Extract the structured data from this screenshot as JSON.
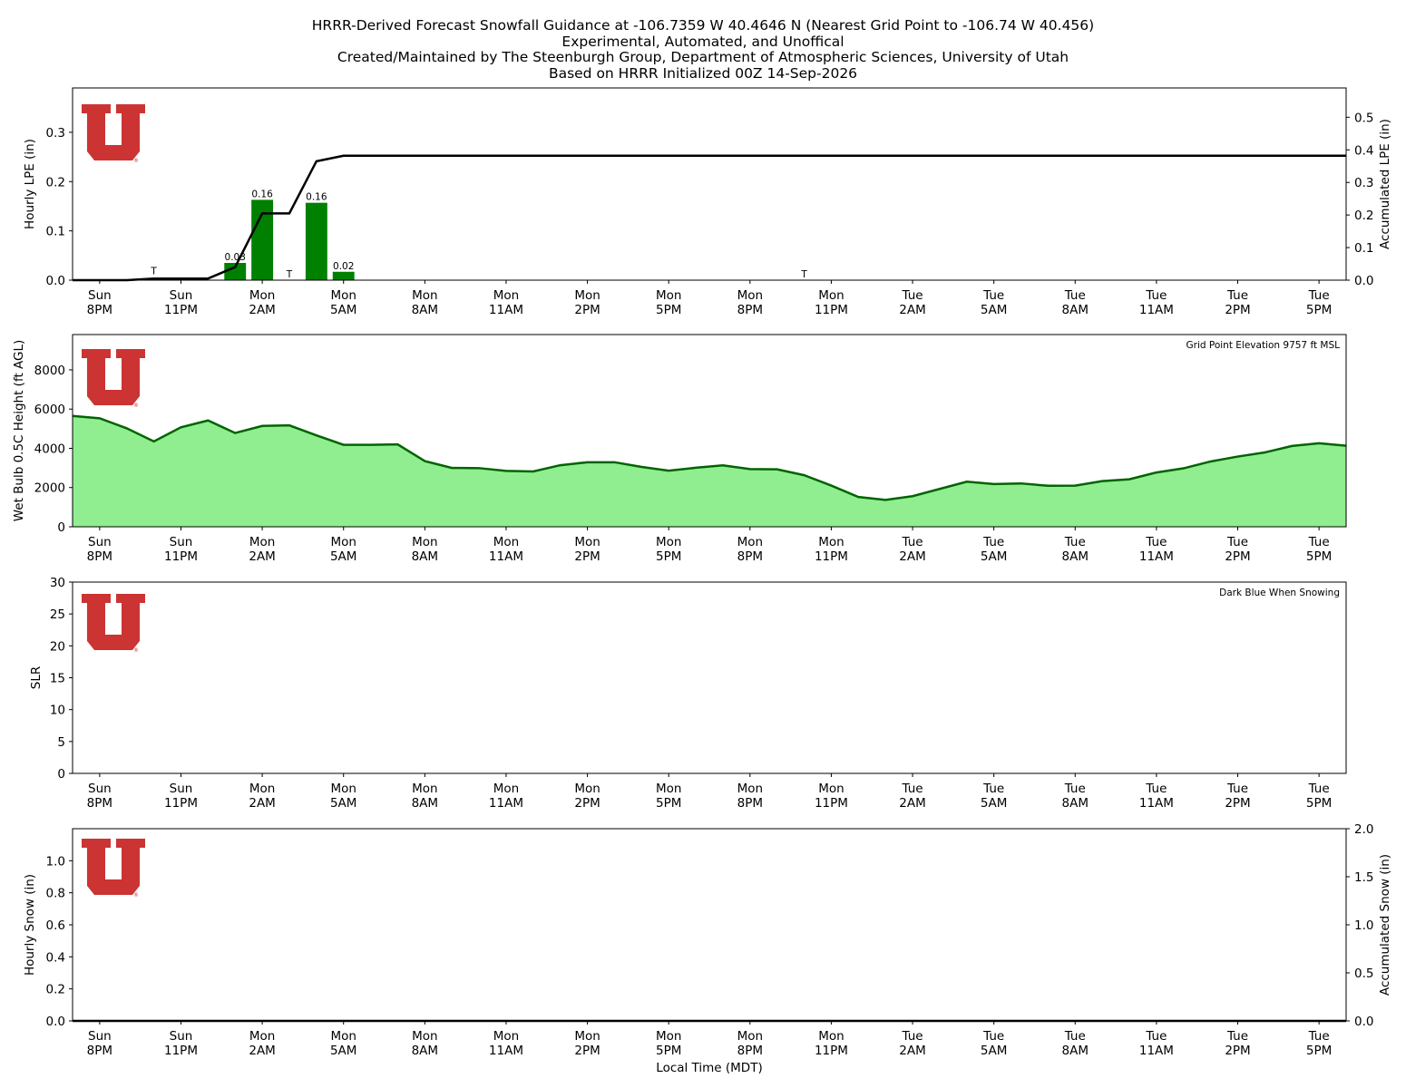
{
  "header": {
    "title_lines": [
      "HRRR-Derived Forecast Snowfall Guidance at -106.7359 W 40.4646 N (Nearest Grid Point to -106.74 W 40.456)",
      "Experimental, Automated, and Unoffical",
      "Created/Maintained by The Steenburgh Group, Department of Atmospheric Sciences, University of Utah",
      "Based on HRRR Initialized 00Z 14-Sep-2026"
    ]
  },
  "colors": {
    "bar_green": "#008000",
    "line_black": "#000000",
    "wb_fill": "#90ee90",
    "wb_line": "#006400",
    "utah_red": "#cc3333"
  },
  "x_axis": {
    "label": "Local Time (MDT)",
    "ticks": [
      {
        "day": "Sun",
        "time": "8PM"
      },
      {
        "day": "Sun",
        "time": "11PM"
      },
      {
        "day": "Mon",
        "time": "2AM"
      },
      {
        "day": "Mon",
        "time": "5AM"
      },
      {
        "day": "Mon",
        "time": "8AM"
      },
      {
        "day": "Mon",
        "time": "11AM"
      },
      {
        "day": "Mon",
        "time": "2PM"
      },
      {
        "day": "Mon",
        "time": "5PM"
      },
      {
        "day": "Mon",
        "time": "8PM"
      },
      {
        "day": "Mon",
        "time": "11PM"
      },
      {
        "day": "Tue",
        "time": "2AM"
      },
      {
        "day": "Tue",
        "time": "5AM"
      },
      {
        "day": "Tue",
        "time": "8AM"
      },
      {
        "day": "Tue",
        "time": "11AM"
      },
      {
        "day": "Tue",
        "time": "2PM"
      },
      {
        "day": "Tue",
        "time": "5PM"
      }
    ]
  },
  "chart_data": [
    {
      "type": "bar",
      "panel": "precip",
      "x_unit": "hours from Sun 8PM MDT",
      "xlim": [
        -1,
        46
      ],
      "ylabel": "Hourly LPE (in)",
      "ylim": [
        0,
        0.39
      ],
      "yticks": [
        0.0,
        0.1,
        0.2,
        0.3
      ],
      "y2label": "Accumulated LPE (in)",
      "y2lim": [
        0,
        0.59
      ],
      "y2ticks": [
        0.0,
        0.1,
        0.2,
        0.3,
        0.4,
        0.5
      ],
      "series": [
        {
          "name": "Hourly LPE",
          "type": "bar",
          "x": [
            5,
            6,
            7,
            8,
            9
          ],
          "values": [
            0.035,
            0.163,
            0.0,
            0.157,
            0.017
          ]
        },
        {
          "name": "Accumulated LPE",
          "type": "line",
          "axis": "right",
          "x": [
            -1,
            0,
            1,
            2,
            3,
            4,
            5,
            6,
            7,
            8,
            9,
            10,
            11,
            12,
            13,
            14,
            15,
            16,
            17,
            18,
            19,
            20,
            21,
            22,
            23,
            24,
            25,
            26,
            27,
            28,
            29,
            30,
            31,
            32,
            33,
            34,
            35,
            36,
            37,
            38,
            39,
            40,
            41,
            42,
            43,
            44,
            45,
            46
          ],
          "values": [
            0,
            0,
            0,
            0.005,
            0.005,
            0.005,
            0.04,
            0.205,
            0.205,
            0.365,
            0.382,
            0.382,
            0.382,
            0.382,
            0.382,
            0.382,
            0.382,
            0.382,
            0.382,
            0.382,
            0.382,
            0.382,
            0.382,
            0.382,
            0.382,
            0.382,
            0.382,
            0.382,
            0.382,
            0.382,
            0.382,
            0.382,
            0.382,
            0.382,
            0.382,
            0.382,
            0.382,
            0.382,
            0.382,
            0.382,
            0.382,
            0.382,
            0.382,
            0.382,
            0.382,
            0.382,
            0.382,
            0.382
          ]
        }
      ],
      "bar_labels": [
        {
          "x": 5,
          "y": 0.035,
          "text": "0.03"
        },
        {
          "x": 6,
          "y": 0.163,
          "text": "0.16"
        },
        {
          "x": 8,
          "y": 0.157,
          "text": "0.16"
        },
        {
          "x": 9,
          "y": 0.017,
          "text": "0.02"
        }
      ],
      "trace_labels": [
        {
          "x": 2,
          "y": 0.006,
          "text": "T"
        },
        {
          "x": 7,
          "y": 0.0,
          "text": "T"
        },
        {
          "x": 26,
          "y": 0.0,
          "text": "T"
        }
      ]
    },
    {
      "type": "area",
      "panel": "wetbulb",
      "ylabel": "Wet Bulb 0.5C Height (ft AGL)",
      "ylim": [
        0,
        9800
      ],
      "yticks": [
        0,
        2000,
        4000,
        6000,
        8000
      ],
      "annotation": "Grid Point Elevation 9757 ft MSL",
      "series": [
        {
          "name": "Wet Bulb 0.5C Height",
          "x": [
            -1,
            0,
            1,
            2,
            3,
            4,
            5,
            6,
            7,
            8,
            9,
            10,
            11,
            12,
            13,
            14,
            15,
            16,
            17,
            18,
            19,
            20,
            21,
            22,
            23,
            24,
            25,
            26,
            27,
            28,
            29,
            30,
            31,
            32,
            33,
            34,
            35,
            36,
            37,
            38,
            39,
            40,
            41,
            42,
            43,
            44,
            45,
            46
          ],
          "values": [
            5650,
            5530,
            5020,
            4350,
            5070,
            5420,
            4780,
            5140,
            5170,
            4660,
            4180,
            4180,
            4200,
            3350,
            3000,
            2990,
            2850,
            2820,
            3140,
            3290,
            3290,
            3050,
            2860,
            3010,
            3130,
            2940,
            2930,
            2630,
            2100,
            1520,
            1370,
            1560,
            1930,
            2300,
            2180,
            2210,
            2090,
            2100,
            2330,
            2420,
            2770,
            2980,
            3330,
            3580,
            3790,
            4120,
            4260,
            4130
          ]
        }
      ]
    },
    {
      "type": "line",
      "panel": "slr",
      "ylabel": "SLR",
      "ylim": [
        0,
        30
      ],
      "yticks": [
        0,
        5,
        10,
        15,
        20,
        25,
        30
      ],
      "annotation": "Dark Blue When Snowing",
      "series": []
    },
    {
      "type": "bar",
      "panel": "snow",
      "ylabel": "Hourly Snow (in)",
      "ylim": [
        0,
        1.2
      ],
      "yticks": [
        0.0,
        0.2,
        0.4,
        0.6,
        0.8,
        1.0
      ],
      "y2label": "Accumulated Snow (in)",
      "y2lim": [
        0,
        2.0
      ],
      "y2ticks": [
        0.0,
        0.5,
        1.0,
        1.5,
        2.0
      ],
      "xlabel": "Local Time (MDT)",
      "series": [
        {
          "name": "Accumulated Snow",
          "type": "line",
          "axis": "right",
          "x": [
            -1,
            46
          ],
          "values": [
            0,
            0
          ]
        }
      ]
    }
  ]
}
